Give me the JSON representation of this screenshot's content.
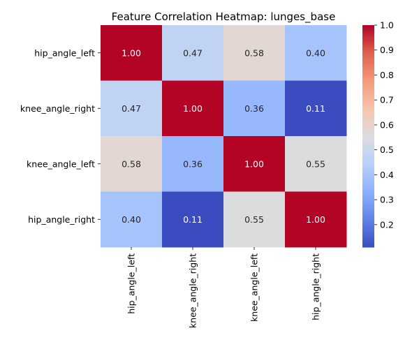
{
  "chart_data": {
    "type": "heatmap",
    "title": "Feature Correlation Heatmap: lunges_base",
    "xlabel": "",
    "ylabel": "",
    "row_labels": [
      "hip_angle_left",
      "knee_angle_right",
      "knee_angle_left",
      "hip_angle_right"
    ],
    "col_labels": [
      "hip_angle_left",
      "knee_angle_right",
      "knee_angle_left",
      "hip_angle_right"
    ],
    "values": [
      [
        1.0,
        0.47,
        0.58,
        0.4
      ],
      [
        0.47,
        1.0,
        0.36,
        0.11
      ],
      [
        0.58,
        0.36,
        1.0,
        0.55
      ],
      [
        0.4,
        0.11,
        0.55,
        1.0
      ]
    ],
    "value_format": "0.00",
    "colormap": "coolwarm",
    "color_range": [
      0.11,
      1.0
    ],
    "colorbar": {
      "ticks": [
        "0.2",
        "0.3",
        "0.4",
        "0.5",
        "0.6",
        "0.7",
        "0.8",
        "0.9",
        "1.0"
      ],
      "placement": "right"
    },
    "grid": false
  }
}
